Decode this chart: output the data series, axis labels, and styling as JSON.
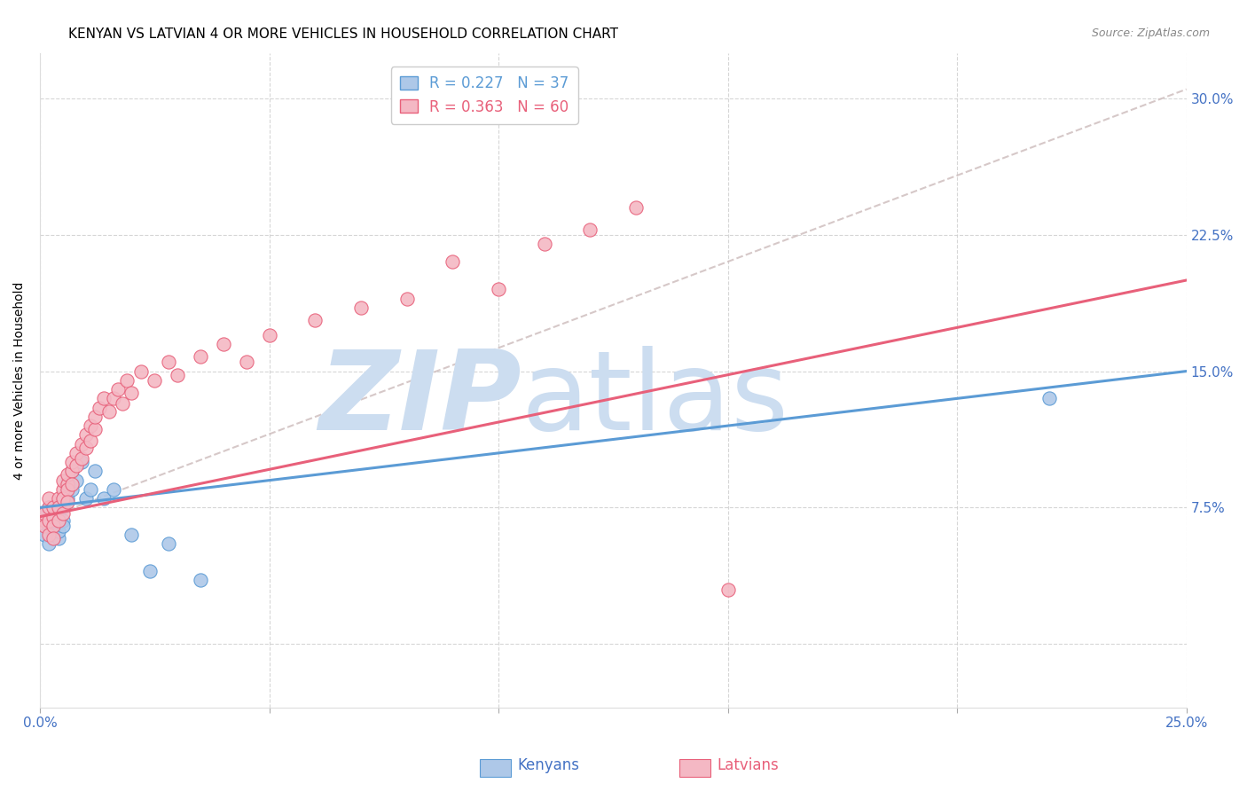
{
  "title": "KENYAN VS LATVIAN 4 OR MORE VEHICLES IN HOUSEHOLD CORRELATION CHART",
  "source": "Source: ZipAtlas.com",
  "ylabel": "4 or more Vehicles in Household",
  "xlim": [
    0.0,
    0.25
  ],
  "ylim": [
    -0.035,
    0.325
  ],
  "yticks": [
    0.0,
    0.075,
    0.15,
    0.225,
    0.3
  ],
  "ytick_labels": [
    "",
    "7.5%",
    "15.0%",
    "22.5%",
    "30.0%"
  ],
  "xticks": [
    0.0,
    0.05,
    0.1,
    0.15,
    0.2,
    0.25
  ],
  "xtick_labels": [
    "0.0%",
    "",
    "",
    "",
    "",
    "25.0%"
  ],
  "legend_line1": "R = 0.227   N = 37",
  "legend_line2": "R = 0.363   N = 60",
  "kenyan_x": [
    0.001,
    0.001,
    0.001,
    0.002,
    0.002,
    0.002,
    0.002,
    0.003,
    0.003,
    0.003,
    0.003,
    0.003,
    0.004,
    0.004,
    0.004,
    0.004,
    0.005,
    0.005,
    0.005,
    0.005,
    0.006,
    0.006,
    0.006,
    0.007,
    0.007,
    0.008,
    0.009,
    0.01,
    0.011,
    0.012,
    0.014,
    0.016,
    0.02,
    0.024,
    0.028,
    0.035,
    0.22
  ],
  "kenyan_y": [
    0.068,
    0.072,
    0.06,
    0.065,
    0.07,
    0.075,
    0.055,
    0.06,
    0.065,
    0.068,
    0.072,
    0.063,
    0.058,
    0.062,
    0.067,
    0.072,
    0.075,
    0.08,
    0.068,
    0.065,
    0.085,
    0.09,
    0.08,
    0.085,
    0.095,
    0.09,
    0.1,
    0.08,
    0.085,
    0.095,
    0.08,
    0.085,
    0.06,
    0.04,
    0.055,
    0.035,
    0.135
  ],
  "latvian_x": [
    0.001,
    0.001,
    0.001,
    0.002,
    0.002,
    0.002,
    0.002,
    0.003,
    0.003,
    0.003,
    0.003,
    0.004,
    0.004,
    0.004,
    0.005,
    0.005,
    0.005,
    0.005,
    0.006,
    0.006,
    0.006,
    0.006,
    0.007,
    0.007,
    0.007,
    0.008,
    0.008,
    0.009,
    0.009,
    0.01,
    0.01,
    0.011,
    0.011,
    0.012,
    0.012,
    0.013,
    0.014,
    0.015,
    0.016,
    0.017,
    0.018,
    0.019,
    0.02,
    0.022,
    0.025,
    0.028,
    0.03,
    0.035,
    0.04,
    0.045,
    0.05,
    0.06,
    0.07,
    0.08,
    0.09,
    0.1,
    0.11,
    0.12,
    0.13,
    0.15
  ],
  "latvian_y": [
    0.068,
    0.072,
    0.065,
    0.075,
    0.08,
    0.068,
    0.06,
    0.07,
    0.075,
    0.065,
    0.058,
    0.08,
    0.075,
    0.068,
    0.085,
    0.09,
    0.08,
    0.072,
    0.088,
    0.093,
    0.085,
    0.078,
    0.095,
    0.1,
    0.088,
    0.105,
    0.098,
    0.11,
    0.102,
    0.115,
    0.108,
    0.12,
    0.112,
    0.118,
    0.125,
    0.13,
    0.135,
    0.128,
    0.135,
    0.14,
    0.132,
    0.145,
    0.138,
    0.15,
    0.145,
    0.155,
    0.148,
    0.158,
    0.165,
    0.155,
    0.17,
    0.178,
    0.185,
    0.19,
    0.21,
    0.195,
    0.22,
    0.228,
    0.24,
    0.03
  ],
  "kenyan_trend_x": [
    0.0,
    0.25
  ],
  "kenyan_trend_y": [
    0.075,
    0.15
  ],
  "latvian_trend_x": [
    0.0,
    0.25
  ],
  "latvian_trend_y": [
    0.07,
    0.2
  ],
  "dashed_trend_x": [
    0.0,
    0.25
  ],
  "dashed_trend_y": [
    0.068,
    0.305
  ],
  "blue_color": "#5b9bd5",
  "blue_fill": "#aec8e8",
  "pink_color": "#e8607a",
  "pink_fill": "#f4b8c4",
  "dashed_color": "#ccbbbb",
  "watermark_zip": "ZIP",
  "watermark_atlas": "atlas",
  "watermark_color": "#ccddf0",
  "background_color": "#ffffff",
  "grid_color": "#cccccc",
  "axis_tick_color": "#4472c4",
  "title_fontsize": 11,
  "ylabel_fontsize": 10,
  "tick_fontsize": 11,
  "marker_size": 120
}
